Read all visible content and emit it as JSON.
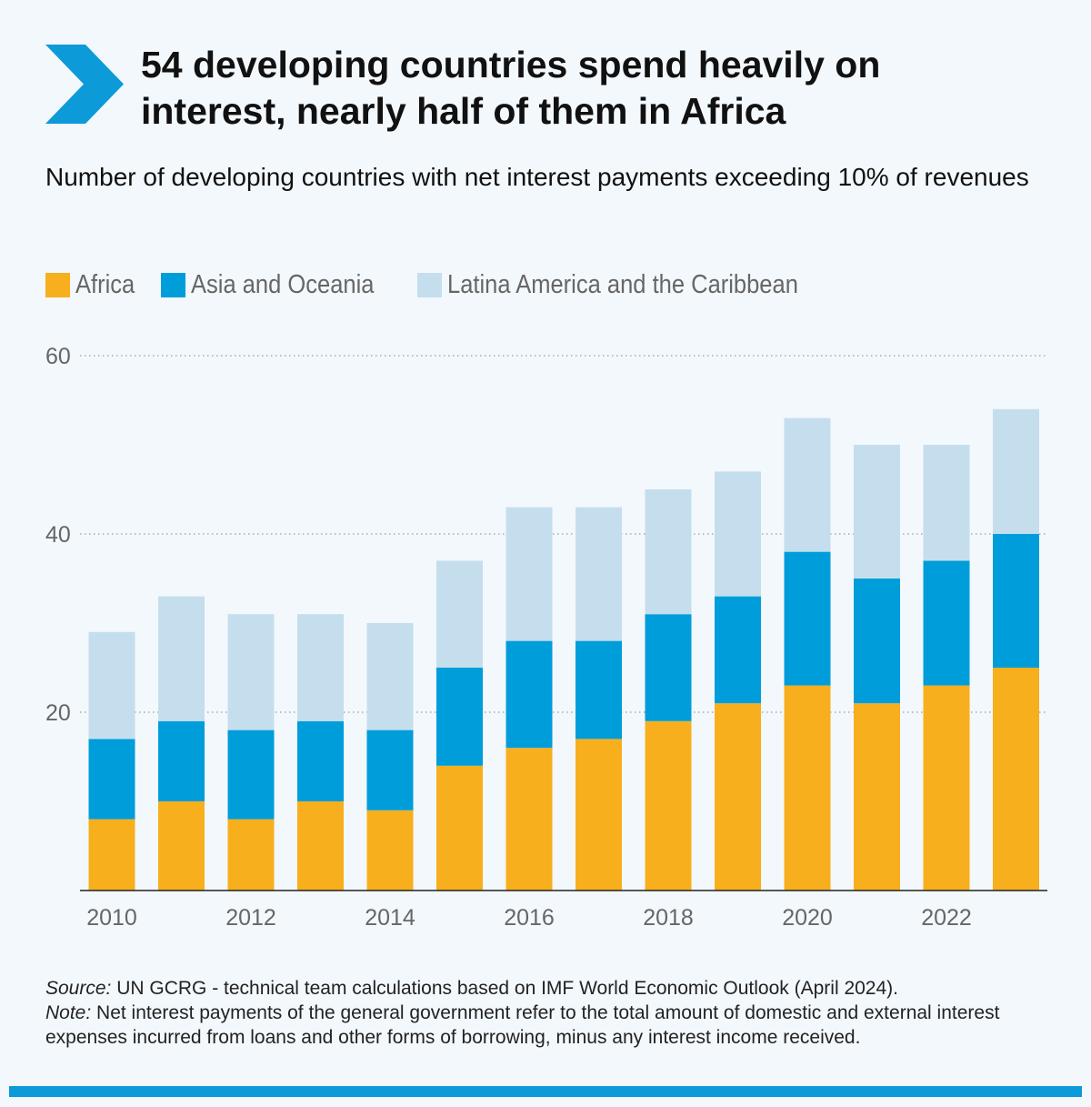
{
  "header": {
    "title_line1": "54 developing countries spend heavily on",
    "title_line2": "interest, nearly half of them in Africa",
    "subtitle": "Number of developing countries with net interest payments exceeding 10% of revenues",
    "icon": "chevron-right-icon"
  },
  "colors": {
    "africa": "#f8af1d",
    "asia": "#009ddb",
    "latam": "#c5deee",
    "accent": "#0c9ad8"
  },
  "chart_data": {
    "type": "bar",
    "stacked": true,
    "x": [
      2010,
      2011,
      2012,
      2013,
      2014,
      2015,
      2016,
      2017,
      2018,
      2019,
      2020,
      2021,
      2022,
      2023
    ],
    "x_tick_labels": [
      "2010",
      "2012",
      "2014",
      "2016",
      "2018",
      "2020",
      "2022"
    ],
    "series": [
      {
        "name": "Africa",
        "values": [
          8,
          10,
          8,
          10,
          9,
          14,
          16,
          17,
          19,
          21,
          23,
          21,
          23,
          25
        ]
      },
      {
        "name": "Asia and Oceania",
        "values": [
          9,
          9,
          10,
          9,
          9,
          11,
          12,
          11,
          12,
          12,
          15,
          14,
          14,
          15
        ]
      },
      {
        "name": "Latina America and the Caribbean",
        "values": [
          12,
          14,
          13,
          12,
          12,
          12,
          15,
          15,
          14,
          14,
          15,
          15,
          13,
          14
        ]
      }
    ],
    "ylim": [
      0,
      60
    ],
    "yticks": [
      20,
      40,
      60
    ],
    "grid": "horizontal-dotted",
    "legend": "top-left"
  },
  "footnote": {
    "source_label": "Source:",
    "source_text": " UN GCRG - technical team calculations based on IMF World Economic Outlook (April 2024).",
    "note_label": "Note:",
    "note_text": " Net interest payments of the general government refer to the total amount of domestic and external interest expenses incurred from loans and other forms of borrowing, minus any interest income received."
  }
}
